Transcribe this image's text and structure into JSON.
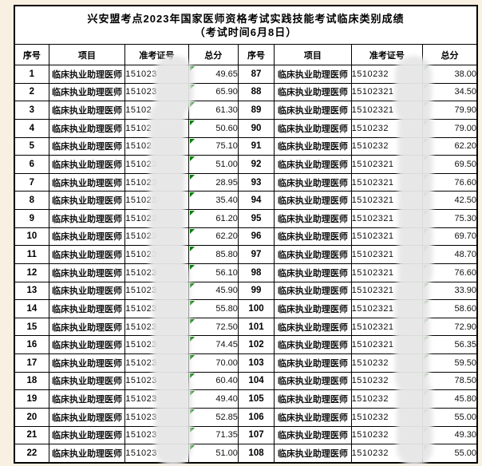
{
  "title": {
    "line1": "兴安盟考点2023年国家医师资格考试实践技能考试临床类别成绩",
    "line2": "（考试时间6月8日）"
  },
  "table": {
    "headers": [
      "序号",
      "项目",
      "准考证号",
      "总分",
      "序号",
      "项目",
      "准考证号",
      "总分"
    ],
    "left_rows": [
      {
        "no": "1",
        "item": "临床执业助理医师",
        "ticket": "151023",
        "score": "49.65"
      },
      {
        "no": "2",
        "item": "临床执业助理医师",
        "ticket": "151023",
        "score": "65.90"
      },
      {
        "no": "3",
        "item": "临床执业助理医师",
        "ticket": "15102",
        "score": "61.30"
      },
      {
        "no": "4",
        "item": "临床执业助理医师",
        "ticket": "15102",
        "score": "50.60"
      },
      {
        "no": "5",
        "item": "临床执业助理医师",
        "ticket": "15102",
        "score": "75.10"
      },
      {
        "no": "6",
        "item": "临床执业助理医师",
        "ticket": "151023",
        "score": "51.00"
      },
      {
        "no": "7",
        "item": "临床执业助理医师",
        "ticket": "151023",
        "score": "28.95"
      },
      {
        "no": "8",
        "item": "临床执业助理医师",
        "ticket": "151023",
        "score": "35.40"
      },
      {
        "no": "9",
        "item": "临床执业助理医师",
        "ticket": "151023",
        "score": "61.20"
      },
      {
        "no": "10",
        "item": "临床执业助理医师",
        "ticket": "151023",
        "score": "62.20"
      },
      {
        "no": "11",
        "item": "临床执业助理医师",
        "ticket": "151023",
        "score": "85.80"
      },
      {
        "no": "12",
        "item": "临床执业助理医师",
        "ticket": "151023",
        "score": "56.10"
      },
      {
        "no": "13",
        "item": "临床执业助理医师",
        "ticket": "151023",
        "score": "45.90"
      },
      {
        "no": "14",
        "item": "临床执业助理医师",
        "ticket": "151023",
        "score": "55.80"
      },
      {
        "no": "15",
        "item": "临床执业助理医师",
        "ticket": "151023",
        "score": "72.50"
      },
      {
        "no": "16",
        "item": "临床执业助理医师",
        "ticket": "151023",
        "score": "74.45"
      },
      {
        "no": "17",
        "item": "临床执业助理医师",
        "ticket": "151023",
        "score": "70.00"
      },
      {
        "no": "18",
        "item": "临床执业助理医师",
        "ticket": "151023",
        "score": "60.40"
      },
      {
        "no": "19",
        "item": "临床执业助理医师",
        "ticket": "151023",
        "score": "49.40"
      },
      {
        "no": "20",
        "item": "临床执业助理医师",
        "ticket": "151023",
        "score": "52.85"
      },
      {
        "no": "21",
        "item": "临床执业助理医师",
        "ticket": "151023",
        "score": "71.35"
      },
      {
        "no": "22",
        "item": "临床执业助理医师",
        "ticket": "151023",
        "score": "51.00"
      }
    ],
    "right_rows": [
      {
        "no": "87",
        "item": "临床执业助理医师",
        "ticket": "1510232",
        "score": "38.00"
      },
      {
        "no": "88",
        "item": "临床执业助理医师",
        "ticket": "15102321",
        "score": "34.50"
      },
      {
        "no": "89",
        "item": "临床执业助理医师",
        "ticket": "15102321",
        "score": "79.90"
      },
      {
        "no": "90",
        "item": "临床执业助理医师",
        "ticket": "1510232",
        "score": "79.00"
      },
      {
        "no": "91",
        "item": "临床执业助理医师",
        "ticket": "1510232",
        "score": "62.20"
      },
      {
        "no": "92",
        "item": "临床执业助理医师",
        "ticket": "15102321",
        "score": "69.50"
      },
      {
        "no": "93",
        "item": "临床执业助理医师",
        "ticket": "15102321",
        "score": "76.60"
      },
      {
        "no": "94",
        "item": "临床执业助理医师",
        "ticket": "15102321",
        "score": "42.50"
      },
      {
        "no": "95",
        "item": "临床执业助理医师",
        "ticket": "15102321",
        "score": "75.30"
      },
      {
        "no": "96",
        "item": "临床执业助理医师",
        "ticket": "15102321",
        "score": "69.70"
      },
      {
        "no": "97",
        "item": "临床执业助理医师",
        "ticket": "15102321",
        "score": "48.70"
      },
      {
        "no": "98",
        "item": "临床执业助理医师",
        "ticket": "15102321",
        "score": "76.60"
      },
      {
        "no": "99",
        "item": "临床执业助理医师",
        "ticket": "15102321",
        "score": "33.90"
      },
      {
        "no": "100",
        "item": "临床执业助理医师",
        "ticket": "15102321",
        "score": "58.60"
      },
      {
        "no": "101",
        "item": "临床执业助理医师",
        "ticket": "15102321",
        "score": "72.90"
      },
      {
        "no": "102",
        "item": "临床执业助理医师",
        "ticket": "15102321",
        "score": "56.35"
      },
      {
        "no": "103",
        "item": "临床执业助理医师",
        "ticket": "1510232",
        "score": "59.50"
      },
      {
        "no": "104",
        "item": "临床执业助理医师",
        "ticket": "1510232",
        "score": "78.50"
      },
      {
        "no": "105",
        "item": "临床执业助理医师",
        "ticket": "1510232",
        "score": "45.80"
      },
      {
        "no": "106",
        "item": "临床执业助理医师",
        "ticket": "1510232",
        "score": "55.00"
      },
      {
        "no": "107",
        "item": "临床执业助理医师",
        "ticket": "1510232",
        "score": "49.30"
      },
      {
        "no": "108",
        "item": "临床执业助理医师",
        "ticket": "1510232",
        "score": "55.00"
      }
    ]
  },
  "colors": {
    "page_margin": "#faf0e1",
    "grid": "#000000",
    "corner_marker_green": "#067d06",
    "smudge_gray": "#e6e6e6"
  }
}
